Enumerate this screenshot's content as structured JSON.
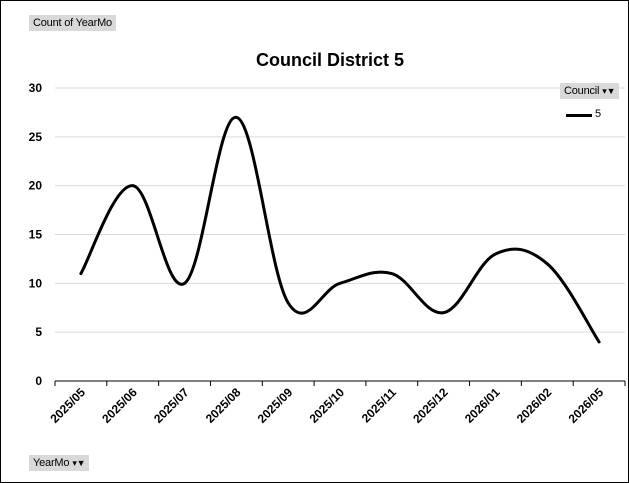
{
  "pivot": {
    "values_field": "Count of YearMo",
    "legend_field": "Council",
    "axis_field": "YearMo"
  },
  "chart_data": {
    "type": "line",
    "title": "Council District 5",
    "categories": [
      "2025/05",
      "2025/06",
      "2025/07",
      "2025/08",
      "2025/09",
      "2025/10",
      "2025/11",
      "2025/12",
      "2026/01",
      "2026/02",
      "2026/05"
    ],
    "series": [
      {
        "name": "5",
        "values": [
          11,
          20,
          10,
          27,
          8,
          10,
          11,
          7,
          13,
          12,
          4
        ],
        "color": "#000000"
      }
    ],
    "ylim": [
      0,
      30
    ],
    "yticks": [
      "0",
      "5",
      "10",
      "15",
      "20",
      "25",
      "30"
    ],
    "grid": true,
    "smooth": true,
    "legend_position": "right"
  }
}
